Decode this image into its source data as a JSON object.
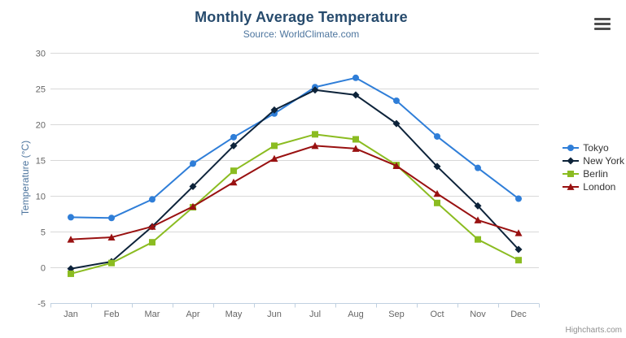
{
  "header": {
    "title": "Monthly Average Temperature",
    "subtitle": "Source: WorldClimate.com"
  },
  "credit_label": "Highcharts.com",
  "colors": {
    "title": "#274b6d",
    "subtitle": "#4d759e",
    "axis_title": "#4d759e",
    "axis_label": "#666666",
    "grid": "#d8d8d8",
    "axis_line": "#c0d0e0",
    "legend_label": "#333333",
    "credit": "#909090",
    "menu_icon": "#4d4d4d"
  },
  "chart_data": {
    "type": "line",
    "title": "Monthly Average Temperature",
    "subtitle": "Source: WorldClimate.com",
    "xlabel": "",
    "ylabel": "Temperature (°C)",
    "ylim": [
      -5,
      30
    ],
    "ytick_interval": 5,
    "grid": true,
    "legend_position": "right",
    "categories": [
      "Jan",
      "Feb",
      "Mar",
      "Apr",
      "May",
      "Jun",
      "Jul",
      "Aug",
      "Sep",
      "Oct",
      "Nov",
      "Dec"
    ],
    "series": [
      {
        "name": "Tokyo",
        "color": "#2f7ed8",
        "marker": "circle",
        "values": [
          7.0,
          6.9,
          9.5,
          14.5,
          18.2,
          21.5,
          25.2,
          26.5,
          23.3,
          18.3,
          13.9,
          9.6
        ]
      },
      {
        "name": "New York",
        "color": "#0d233a",
        "marker": "diamond",
        "values": [
          -0.2,
          0.8,
          5.7,
          11.3,
          17.0,
          22.0,
          24.8,
          24.1,
          20.1,
          14.1,
          8.6,
          2.5
        ]
      },
      {
        "name": "Berlin",
        "color": "#8bbc21",
        "marker": "square",
        "values": [
          -0.9,
          0.6,
          3.5,
          8.4,
          13.5,
          17.0,
          18.6,
          17.9,
          14.3,
          9.0,
          3.9,
          1.0
        ]
      },
      {
        "name": "London",
        "color": "#991111",
        "marker": "triangle",
        "values": [
          3.9,
          4.2,
          5.7,
          8.5,
          11.9,
          15.2,
          17.0,
          16.6,
          14.2,
          10.3,
          6.6,
          4.8
        ]
      }
    ]
  }
}
